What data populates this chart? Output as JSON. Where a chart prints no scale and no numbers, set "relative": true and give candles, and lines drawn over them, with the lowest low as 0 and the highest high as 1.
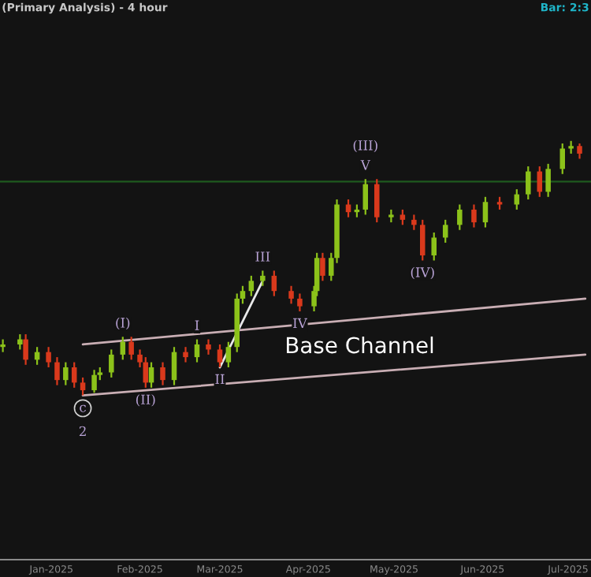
{
  "chart_data": {
    "type": "candlestick",
    "relative": true,
    "title": "(Primary Analysis) - 4 hour",
    "x": [
      "2024-12-15",
      "2024-12-21",
      "2024-12-23",
      "2024-12-27",
      "2024-12-31",
      "2025-01-03",
      "2025-01-06",
      "2025-01-09",
      "2025-01-12",
      "2025-01-16",
      "2025-01-18",
      "2025-01-22",
      "2025-01-26",
      "2025-01-29",
      "2025-02-01",
      "2025-02-03",
      "2025-02-05",
      "2025-02-09",
      "2025-02-13",
      "2025-02-17",
      "2025-02-21",
      "2025-02-25",
      "2025-03-01",
      "2025-03-04",
      "2025-03-07",
      "2025-03-09",
      "2025-03-12",
      "2025-03-16",
      "2025-03-20",
      "2025-03-26",
      "2025-03-29",
      "2025-04-03",
      "2025-04-04",
      "2025-04-06",
      "2025-04-09",
      "2025-04-11",
      "2025-04-15",
      "2025-04-18",
      "2025-04-21",
      "2025-04-25",
      "2025-04-30",
      "2025-05-04",
      "2025-05-08",
      "2025-05-11",
      "2025-05-15",
      "2025-05-19",
      "2025-05-24",
      "2025-05-29",
      "2025-06-02",
      "2025-06-07",
      "2025-06-13",
      "2025-06-17",
      "2025-06-21",
      "2025-06-24",
      "2025-06-29",
      "2025-07-02",
      "2025-07-05"
    ],
    "ohlc": [
      [
        0.19,
        0.22,
        0.17,
        0.2
      ],
      [
        0.2,
        0.24,
        0.18,
        0.22
      ],
      [
        0.22,
        0.24,
        0.12,
        0.14
      ],
      [
        0.14,
        0.19,
        0.12,
        0.17
      ],
      [
        0.17,
        0.19,
        0.11,
        0.13
      ],
      [
        0.13,
        0.15,
        0.04,
        0.06
      ],
      [
        0.06,
        0.13,
        0.04,
        0.11
      ],
      [
        0.11,
        0.13,
        0.03,
        0.05
      ],
      [
        0.05,
        0.07,
        0.0,
        0.02
      ],
      [
        0.02,
        0.1,
        0.01,
        0.08
      ],
      [
        0.08,
        0.11,
        0.06,
        0.09
      ],
      [
        0.09,
        0.18,
        0.07,
        0.16
      ],
      [
        0.16,
        0.23,
        0.14,
        0.21
      ],
      [
        0.21,
        0.23,
        0.14,
        0.16
      ],
      [
        0.16,
        0.18,
        0.11,
        0.13
      ],
      [
        0.13,
        0.15,
        0.03,
        0.05
      ],
      [
        0.05,
        0.13,
        0.03,
        0.11
      ],
      [
        0.11,
        0.13,
        0.04,
        0.06
      ],
      [
        0.06,
        0.19,
        0.04,
        0.17
      ],
      [
        0.17,
        0.19,
        0.13,
        0.15
      ],
      [
        0.15,
        0.22,
        0.13,
        0.2
      ],
      [
        0.2,
        0.22,
        0.16,
        0.18
      ],
      [
        0.18,
        0.2,
        0.11,
        0.13
      ],
      [
        0.13,
        0.21,
        0.11,
        0.19
      ],
      [
        0.19,
        0.4,
        0.17,
        0.38
      ],
      [
        0.38,
        0.43,
        0.36,
        0.41
      ],
      [
        0.41,
        0.47,
        0.39,
        0.45
      ],
      [
        0.45,
        0.49,
        0.43,
        0.47
      ],
      [
        0.47,
        0.49,
        0.39,
        0.41
      ],
      [
        0.41,
        0.43,
        0.36,
        0.38
      ],
      [
        0.38,
        0.4,
        0.33,
        0.35
      ],
      [
        0.35,
        0.43,
        0.33,
        0.41
      ],
      [
        0.41,
        0.56,
        0.39,
        0.54
      ],
      [
        0.54,
        0.56,
        0.45,
        0.47
      ],
      [
        0.47,
        0.56,
        0.45,
        0.54
      ],
      [
        0.54,
        0.77,
        0.52,
        0.75
      ],
      [
        0.75,
        0.77,
        0.7,
        0.72
      ],
      [
        0.72,
        0.75,
        0.7,
        0.73
      ],
      [
        0.73,
        0.85,
        0.71,
        0.83
      ],
      [
        0.83,
        0.85,
        0.68,
        0.7
      ],
      [
        0.7,
        0.73,
        0.68,
        0.71
      ],
      [
        0.71,
        0.73,
        0.67,
        0.69
      ],
      [
        0.69,
        0.71,
        0.65,
        0.67
      ],
      [
        0.67,
        0.69,
        0.53,
        0.55
      ],
      [
        0.55,
        0.64,
        0.53,
        0.62
      ],
      [
        0.62,
        0.69,
        0.6,
        0.67
      ],
      [
        0.67,
        0.75,
        0.65,
        0.73
      ],
      [
        0.73,
        0.75,
        0.66,
        0.68
      ],
      [
        0.68,
        0.78,
        0.66,
        0.76
      ],
      [
        0.76,
        0.78,
        0.73,
        0.75
      ],
      [
        0.75,
        0.81,
        0.73,
        0.79
      ],
      [
        0.79,
        0.9,
        0.77,
        0.88
      ],
      [
        0.88,
        0.9,
        0.78,
        0.8
      ],
      [
        0.8,
        0.91,
        0.78,
        0.89
      ],
      [
        0.89,
        0.99,
        0.87,
        0.97
      ],
      [
        0.97,
        1.0,
        0.95,
        0.98
      ],
      [
        0.98,
        0.99,
        0.93,
        0.95
      ]
    ],
    "series": [
      {
        "type": "line",
        "color": "#c9aeb4",
        "x": [
          "2025-01-12",
          "2025-07-07"
        ],
        "values": [
          0.2,
          0.38
        ]
      },
      {
        "type": "line",
        "color": "#c9aeb4",
        "x": [
          "2025-01-12",
          "2025-07-07"
        ],
        "values": [
          0.0,
          0.16
        ]
      },
      {
        "type": "line",
        "color": "#e8e8e8",
        "x": [
          "2025-03-01",
          "2025-03-16"
        ],
        "values": [
          0.11,
          0.45
        ]
      }
    ],
    "colors": [
      "#8cc21a",
      "#8cc21a",
      "#d9391c",
      "#8cc21a",
      "#d9391c",
      "#d9391c",
      "#8cc21a",
      "#d9391c",
      "#d9391c",
      "#8cc21a",
      "#8cc21a",
      "#8cc21a",
      "#8cc21a",
      "#d9391c",
      "#d9391c",
      "#d9391c",
      "#8cc21a",
      "#d9391c",
      "#8cc21a",
      "#d9391c",
      "#8cc21a",
      "#d9391c",
      "#d9391c",
      "#8cc21a",
      "#8cc21a",
      "#8cc21a",
      "#8cc21a",
      "#8cc21a",
      "#d9391c",
      "#d9391c",
      "#d9391c",
      "#8cc21a",
      "#8cc21a",
      "#d9391c",
      "#8cc21a",
      "#8cc21a",
      "#d9391c",
      "#8cc21a",
      "#8cc21a",
      "#d9391c",
      "#8cc21a",
      "#d9391c",
      "#d9391c",
      "#d9391c",
      "#8cc21a",
      "#8cc21a",
      "#8cc21a",
      "#d9391c",
      "#8cc21a",
      "#d9391c",
      "#8cc21a",
      "#8cc21a",
      "#d9391c",
      "#8cc21a",
      "#8cc21a",
      "#8cc21a",
      "#d9391c"
    ],
    "ref_lines": [
      {
        "axis": "y",
        "value": 0.84,
        "color": "#1f5a1f"
      }
    ],
    "xlim": [
      "2024-12-14",
      "2025-07-09"
    ],
    "xticks": [
      {
        "value": "2025-01-01",
        "label": "Jan-2025"
      },
      {
        "value": "2025-02-01",
        "label": "Feb-2025"
      },
      {
        "value": "2025-03-01",
        "label": "Mar-2025"
      },
      {
        "value": "2025-04-01",
        "label": "Apr-2025"
      },
      {
        "value": "2025-05-01",
        "label": "May-2025"
      },
      {
        "value": "2025-06-01",
        "label": "Jun-2025"
      },
      {
        "value": "2025-07-01",
        "label": "Jul-2025"
      }
    ],
    "tick_labels": "x",
    "grid": false,
    "legend": false,
    "annotations": [
      {
        "text": "(I)",
        "x": "2025-01-26",
        "y": 0.23
      },
      {
        "text": "(II)",
        "x": "2025-02-03",
        "y": 0.03
      },
      {
        "text": "c",
        "x": "2025-01-12",
        "y": 0.0
      },
      {
        "text": "2",
        "x": "2025-01-12",
        "y": 0.0
      },
      {
        "text": "I",
        "x": "2025-02-21",
        "y": 0.22
      },
      {
        "text": "II",
        "x": "2025-03-01",
        "y": 0.11
      },
      {
        "text": "III",
        "x": "2025-03-16",
        "y": 0.49
      },
      {
        "text": "IV",
        "x": "2025-03-29",
        "y": 0.33
      },
      {
        "text": "V",
        "x": "2025-04-21",
        "y": 0.85
      },
      {
        "text": "(III)",
        "x": "2025-04-21",
        "y": 0.85
      },
      {
        "text": "(IV)",
        "x": "2025-05-11",
        "y": 0.53
      },
      "Bar: 2:3",
      {
        "text": "Base Channel",
        "x": "2025-04-19",
        "y": 0.3
      }
    ]
  }
}
